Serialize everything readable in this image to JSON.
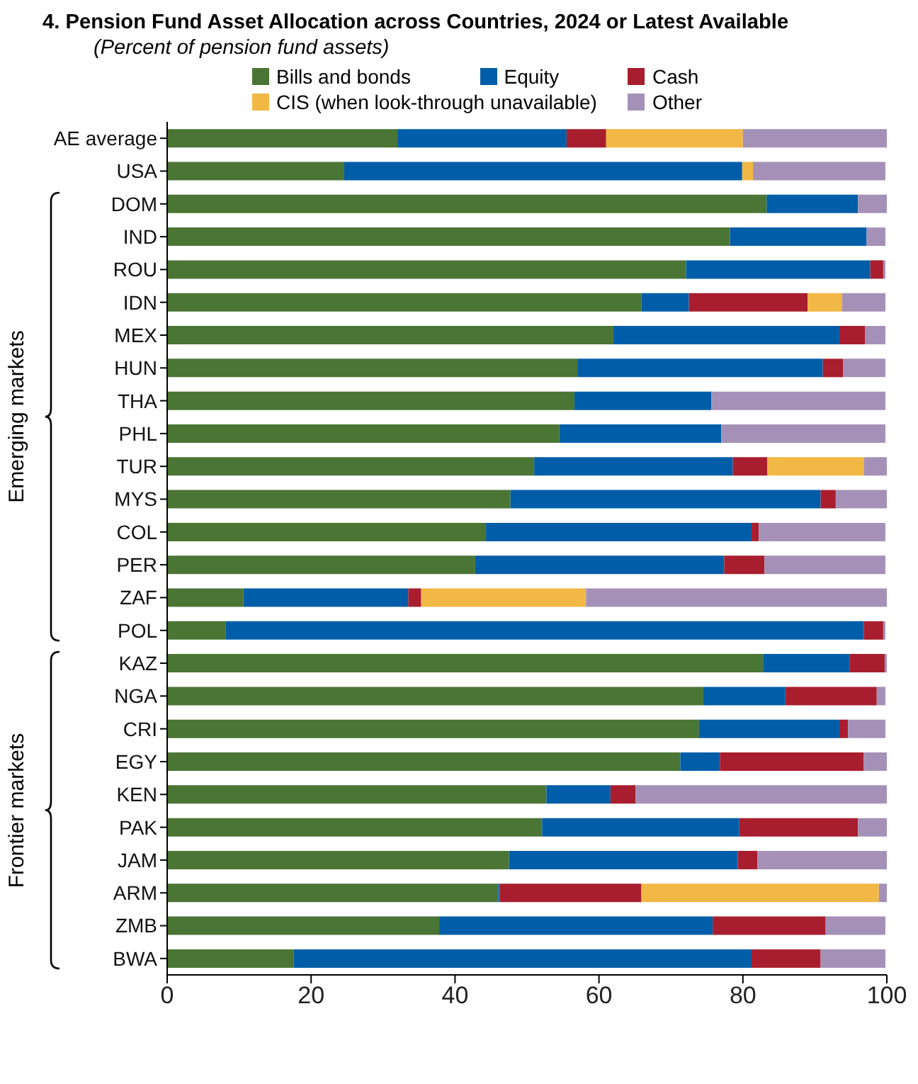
{
  "chart_data": {
    "type": "bar",
    "orientation": "horizontal",
    "stacked": true,
    "title": "4. Pension Fund Asset Allocation across Countries, 2024 or Latest Available",
    "subtitle": "(Percent of pension fund assets)",
    "categories": [
      "AE average",
      "USA",
      "DOM",
      "IND",
      "ROU",
      "IDN",
      "MEX",
      "HUN",
      "THA",
      "PHL",
      "TUR",
      "MYS",
      "COL",
      "PER",
      "ZAF",
      "POL",
      "KAZ",
      "NGA",
      "CRI",
      "EGY",
      "KEN",
      "PAK",
      "JAM",
      "ARM",
      "ZMB",
      "BWA"
    ],
    "series": [
      {
        "name": "Bills and bonds",
        "color": "#4a7534",
        "values": [
          32,
          24.6,
          83.3,
          78.2,
          72.1,
          65.9,
          62,
          57,
          56.6,
          54.5,
          51,
          47.7,
          44.3,
          42.8,
          10.6,
          8.1,
          82.8,
          74.5,
          73.9,
          71.3,
          52.7,
          52.1,
          47.5,
          46,
          37.8,
          17.6
        ]
      },
      {
        "name": "Equity",
        "color": "#005ea8",
        "values": [
          23.5,
          55.3,
          12.7,
          19,
          25.6,
          6.6,
          31.4,
          34.1,
          19,
          22.5,
          27.6,
          43.1,
          36.9,
          34.6,
          22.9,
          88.7,
          12,
          11.4,
          19.5,
          5.5,
          8.9,
          27.4,
          31.8,
          0.2,
          38,
          63.6
        ]
      },
      {
        "name": "Cash",
        "color": "#a81e2e",
        "values": [
          5.5,
          0,
          0,
          0,
          1.8,
          16.5,
          3.6,
          2.8,
          0,
          0,
          4.8,
          2.1,
          1,
          5.6,
          1.8,
          2.7,
          4.9,
          12.7,
          1.2,
          20,
          3.5,
          16.5,
          2.7,
          19.7,
          15.7,
          9.6
        ]
      },
      {
        "name": "CIS (when look-through unavailable)",
        "color": "#f2b845",
        "values": [
          19,
          1.5,
          0,
          0,
          0,
          4.8,
          0,
          0,
          0,
          0,
          13.4,
          0,
          0,
          0,
          22.9,
          0,
          0,
          0,
          0,
          0,
          0,
          0,
          0,
          33,
          0,
          0
        ]
      },
      {
        "name": "Other",
        "color": "#a591b8",
        "values": [
          20,
          18.4,
          4,
          2.6,
          0.3,
          6,
          2.8,
          5.9,
          24.2,
          22.8,
          3.2,
          7.1,
          17.6,
          16.8,
          41.8,
          0.3,
          0.3,
          1.2,
          5.2,
          3.2,
          34.9,
          4,
          18,
          1.1,
          8.3,
          9
        ]
      }
    ],
    "xlim": [
      0,
      100
    ],
    "xticks": [
      0,
      20,
      40,
      60,
      80,
      100
    ],
    "grid": false,
    "legend": "top",
    "annotations": [
      "Emerging markets",
      "Frontier markets"
    ]
  }
}
